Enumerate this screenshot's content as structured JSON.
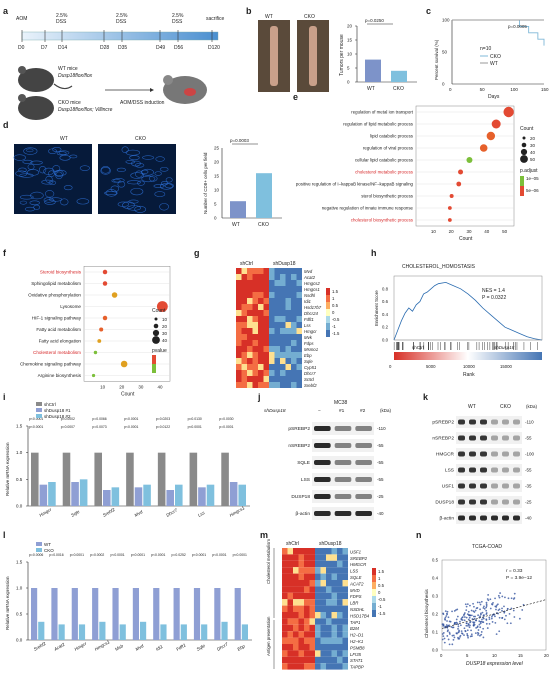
{
  "panel_labels": [
    "a",
    "b",
    "c",
    "d",
    "e",
    "f",
    "g",
    "h",
    "i",
    "j",
    "k",
    "l",
    "m",
    "n"
  ],
  "a": {
    "timeline": {
      "events": [
        {
          "top": "AOM",
          "bottom": "D0"
        },
        {
          "top": "",
          "bottom": "D7"
        },
        {
          "top": "2.5%\nDSS",
          "bottom": "D14"
        },
        {
          "top": "",
          "bottom": "D28"
        },
        {
          "top": "2.5%\nDSS",
          "bottom": "D35"
        },
        {
          "top": "",
          "bottom": "D49"
        },
        {
          "top": "2.5%\nDSS",
          "bottom": "D56"
        },
        {
          "top": "sacrifice",
          "bottom": "D120"
        }
      ]
    },
    "wt_label": "WT mice",
    "wt_genotype": "Dusp18flox/flox",
    "cko_label": "CKO mice",
    "cko_genotype": "Dusp18flox/flox; Villincre",
    "induction": "AOM/DSS induction"
  },
  "b": {
    "wt_label": "WT",
    "cko_label": "CKO",
    "ylabel": "Tumors per mouse",
    "pvalue": "p=0.0250",
    "ticks": [
      "0",
      "5",
      "10",
      "15",
      "20"
    ]
  },
  "c": {
    "ylabel": "Percent survival (%)",
    "xlabel": "Days",
    "n_label": "n=10",
    "pvalue": "p=0.0005",
    "legend": [
      "CKO",
      "WT"
    ],
    "yticks": [
      "0",
      "50",
      "100"
    ],
    "xticks": [
      "0",
      "50",
      "100",
      "150"
    ]
  },
  "d": {
    "wt_label": "WT",
    "cko_label": "CKO",
    "ylabel": "Number of CD8+ cells per field",
    "pvalue": "p=0.0003",
    "yticks": [
      "0",
      "5",
      "10",
      "15",
      "20",
      "25"
    ],
    "groups": [
      "WT",
      "CKO"
    ]
  },
  "chart_data": [
    {
      "type": "bar",
      "panel": "b",
      "categories": [
        "WT",
        "CKO"
      ],
      "values": [
        8,
        4
      ],
      "ylabel": "Tumors per mouse",
      "ylim": [
        0,
        20
      ]
    },
    {
      "type": "line",
      "panel": "c",
      "series": [
        {
          "name": "CKO",
          "x": [
            0,
            90,
            110,
            125,
            140,
            150
          ],
          "y": [
            100,
            100,
            90,
            80,
            70,
            60
          ]
        },
        {
          "name": "WT",
          "x": [
            0,
            150
          ],
          "y": [
            100,
            100
          ]
        }
      ],
      "xlabel": "Days",
      "ylabel": "Percent survival (%)",
      "xlim": [
        0,
        150
      ],
      "ylim": [
        0,
        100
      ]
    },
    {
      "type": "bar",
      "panel": "d",
      "categories": [
        "WT",
        "CKO"
      ],
      "values": [
        6,
        16
      ],
      "ylabel": "Number of CD8+ cells per field",
      "ylim": [
        0,
        25
      ]
    },
    {
      "type": "scatter",
      "panel": "e",
      "categories": [
        "regulation of metal ion transport",
        "regulation of lipid metabolic process",
        "lipid catabolic process",
        "regulation of viral process",
        "cellular lipid catabolic process",
        "cholesterol metabolic process",
        "positive regulation of I−kappaB kinase/NF−kappaB signaling",
        "sterol biosynthetic process",
        "negative regulation of innate immune response",
        "cholesterol biosynthetic process"
      ],
      "values": [
        52,
        45,
        42,
        38,
        30,
        25,
        24,
        20,
        19,
        19
      ],
      "xlabel": "Count",
      "xlim": [
        0,
        55
      ]
    },
    {
      "type": "scatter",
      "panel": "f",
      "categories": [
        "Steroid biosynthesis",
        "Sphingolipid metabolism",
        "Oxidative phosphorylation",
        "Lysosome",
        "HIF-1 signaling pathway",
        "Fatty acid metabolism",
        "Fatty acid elongation",
        "Cholesterol metabolism",
        "Chemokine signaling pathway",
        "Arginine biosynthesis"
      ],
      "values": [
        11,
        11,
        16,
        41,
        11,
        9,
        8,
        6,
        21,
        5
      ],
      "xlabel": "Count",
      "xlim": [
        0,
        45
      ]
    },
    {
      "type": "line",
      "panel": "h",
      "xlabel": "Rank",
      "ylabel": "Enrichment Score",
      "title": "CHOLESTEROL_HOMOSTASIS",
      "x": [
        0,
        500,
        1000,
        1500,
        2000,
        2500,
        3000,
        3500,
        4000,
        4500,
        5000,
        5500,
        6000,
        7000,
        8000,
        9000,
        10000,
        11000,
        12000,
        13000,
        14000,
        15000,
        16000,
        17000,
        18000,
        19000,
        20000
      ],
      "y": [
        0.0,
        0.15,
        0.3,
        0.42,
        0.5,
        0.45,
        0.55,
        0.6,
        0.72,
        0.75,
        0.8,
        0.85,
        0.88,
        0.9,
        0.85,
        0.8,
        0.72,
        0.62,
        0.5,
        0.4,
        0.3,
        0.2,
        0.15,
        0.1,
        0.05,
        0.02,
        0.0
      ],
      "xlim": [
        0,
        20000
      ],
      "ylim": [
        0,
        1.0
      ]
    },
    {
      "type": "bar",
      "panel": "i",
      "categories": [
        "Hmgcr",
        "Sqle",
        "Srebf2",
        "Mvd",
        "Dhcr7",
        "Lss",
        "Hmgcs1"
      ],
      "series": [
        {
          "name": "shCtrl",
          "values": [
            1.0,
            1.0,
            1.0,
            1.0,
            1.0,
            1.0,
            1.0
          ]
        },
        {
          "name": "shDusp18 #1",
          "values": [
            0.4,
            0.45,
            0.3,
            0.35,
            0.3,
            0.35,
            0.45
          ]
        },
        {
          "name": "shDusp18 #2",
          "values": [
            0.45,
            0.5,
            0.35,
            0.4,
            0.4,
            0.4,
            0.4
          ]
        }
      ],
      "ylabel": "Relative mRNA expression",
      "ylim": [
        0,
        1.5
      ]
    },
    {
      "type": "bar",
      "panel": "l",
      "categories": [
        "Srebf2",
        "Acat2",
        "Hmgcr",
        "Hmgcs1",
        "Msb",
        "Mvd",
        "Idi1",
        "Fdft1",
        "Sqle",
        "Dhcr7",
        "Ebp"
      ],
      "series": [
        {
          "name": "WT",
          "values": [
            1.0,
            1.0,
            1.0,
            1.0,
            1.0,
            1.0,
            1.0,
            1.0,
            1.0,
            1.0,
            1.0
          ]
        },
        {
          "name": "CKO",
          "values": [
            0.35,
            0.3,
            0.3,
            0.35,
            0.3,
            0.35,
            0.3,
            0.3,
            0.3,
            0.35,
            0.3
          ]
        }
      ],
      "ylabel": "Relative mRNA expression",
      "ylim": [
        0,
        1.5
      ]
    },
    {
      "type": "scatter",
      "panel": "n",
      "title": "TCGA-COAD",
      "xlabel": "DUSP18 expression level",
      "ylabel": "Cholesterol biosynthesis",
      "xlim": [
        0,
        20
      ],
      "ylim": [
        0,
        0.5
      ]
    }
  ],
  "e": {
    "legend_count": "Count",
    "legend_sizes": [
      "20",
      "30",
      "40",
      "50"
    ],
    "legend_padj": "p.adjust",
    "padj_ticks": [
      "1e−05",
      "5e−06"
    ],
    "xticks": [
      "10",
      "20",
      "30",
      "40",
      "50"
    ],
    "highlight_color": "#d62728"
  },
  "f": {
    "legend_count": "Count",
    "legend_sizes": [
      "10",
      "20",
      "30",
      "40"
    ],
    "legend_p": "pvalue",
    "xticks": [
      "10",
      "20",
      "30",
      "40"
    ]
  },
  "g": {
    "col_labels": [
      "shCtrl",
      "shDusp18"
    ],
    "genes": [
      "Mvd",
      "Acat2",
      "Hmgcs2",
      "Hmgcs1",
      "Nsdhl",
      "Idi1",
      "Hsd17b7",
      "Dhcr24",
      "Fdft1",
      "Lss",
      "Hmgcr",
      "Mvk",
      "Fdps",
      "Msmo1",
      "Ebp",
      "Sqle",
      "Cyp51",
      "Dhcr7",
      "Sc5d",
      "Srebf2"
    ],
    "scale": [
      "1.5",
      "1",
      "0.5",
      "0",
      "-0.5",
      "-1",
      "-1.5"
    ]
  },
  "h": {
    "nes": "NES = 1.4",
    "p": "P = 0.0322",
    "left_label": "shCtrl",
    "right_label": "shDusp18",
    "yticks": [
      "0.0",
      "0.2",
      "0.4",
      "0.6",
      "0.8"
    ],
    "xticks": [
      "0",
      "5000",
      "10000",
      "15000"
    ]
  },
  "i": {
    "legend": [
      "shCtrl",
      "shDusp18 #1",
      "shDusp18 #2"
    ],
    "yticks": [
      "0.0",
      "0.5",
      "1.0",
      "1.5"
    ],
    "pvals_top": [
      "p<0.0001",
      "p=0.0002",
      "p=0.0066",
      "p<0.0001",
      "p=0.0203",
      "p=0.0130",
      "p=0.0030"
    ],
    "pvals_bottom": [
      "p<0.0001",
      "p=0.0007",
      "p=0.0073",
      "p<0.0001",
      "p=0.0122",
      "p<0.0001",
      "p=0.0001"
    ]
  },
  "j": {
    "title": "MC38",
    "header_gene": "shDusp18",
    "lanes": [
      "−",
      "#1",
      "#2"
    ],
    "unit": "(kDa)",
    "rows": [
      {
        "label": "pSREBP2",
        "kda": "110"
      },
      {
        "label": "nSREBP2",
        "kda": "55"
      },
      {
        "label": "SQLE",
        "kda": "55"
      },
      {
        "label": "LSS",
        "kda": "55"
      },
      {
        "label": "DUSP18",
        "kda": "25"
      },
      {
        "label": "β-actin",
        "kda": "40"
      }
    ]
  },
  "k": {
    "wt": "WT",
    "cko": "CKO",
    "unit": "(kDa)",
    "rows": [
      {
        "label": "pSREBP2",
        "kda": "110"
      },
      {
        "label": "nSREBP2",
        "kda": "55"
      },
      {
        "label": "HMGCR",
        "kda": "100"
      },
      {
        "label": "LSS",
        "kda": "55"
      },
      {
        "label": "USF1",
        "kda": "35"
      },
      {
        "label": "DUSP18",
        "kda": "25"
      },
      {
        "label": "β-actin",
        "kda": "40"
      }
    ]
  },
  "l": {
    "legend": [
      "WT",
      "CKO"
    ],
    "yticks": [
      "0.0",
      "0.5",
      "1.0",
      "1.5"
    ],
    "pvals": [
      "p=0.0006",
      "p=0.0016",
      "p=0.0001",
      "p=0.0002",
      "p<0.0001",
      "p<0.0001",
      "p<0.0001",
      "p=0.0252",
      "p<0.0001",
      "p<0.0001",
      "p<0.0001"
    ]
  },
  "m": {
    "col_labels": [
      "shCtrl",
      "shDusp18"
    ],
    "genes": [
      "USF1",
      "SREBP2",
      "HMGCR",
      "LSS",
      "SQLE",
      "ACAT2",
      "MVD",
      "FDPS",
      "LBR",
      "NSDHL",
      "HSD17B4",
      "TAP1",
      "B2M",
      "H2−D1",
      "H2−K1",
      "PSMB8",
      "LFI35",
      "STAT1",
      "TAPBP"
    ],
    "group1": "Cholesterol metabolism",
    "group2": "Antigen presentation",
    "scale": [
      "1.5",
      "1",
      "0.5",
      "0",
      "-0.5",
      "-1",
      "-1.5"
    ]
  },
  "n": {
    "r": "r = 0.33",
    "p": "P = 3.9e−12",
    "xticks": [
      "0",
      "5",
      "10",
      "15",
      "20"
    ],
    "yticks": [
      "0.0",
      "0.1",
      "0.2",
      "0.3",
      "0.4",
      "0.5"
    ]
  }
}
